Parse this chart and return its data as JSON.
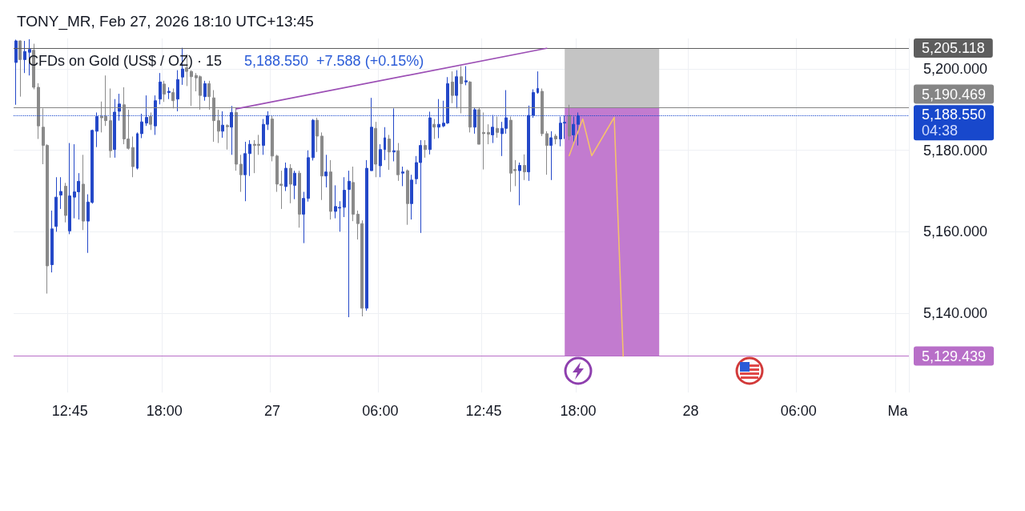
{
  "chart_data": {
    "type": "candlestick",
    "title": "CFDs on Gold (US$ / OZ) · 15",
    "subtitle": "5,188.550  +7.588 (+0.15%)",
    "annotations": [
      "TONY_MR, Feb 27, 2026 18:10 UTC+13:45",
      "04:38"
    ],
    "categories": [
      null,
      null,
      null,
      null,
      null,
      null,
      null,
      null,
      null,
      null,
      null,
      null,
      "12:45",
      null,
      null,
      null,
      null,
      null,
      null,
      null,
      null,
      null,
      null,
      null,
      null,
      null,
      null,
      null,
      null,
      null,
      null,
      null,
      null,
      "18:00",
      null,
      null,
      null,
      null,
      null,
      null,
      null,
      null,
      null,
      null,
      null,
      null,
      null,
      null,
      null,
      null,
      null,
      null,
      null,
      null,
      null,
      null,
      null,
      "27",
      null,
      null,
      null,
      null,
      null,
      null,
      null,
      null,
      null,
      null,
      null,
      null,
      null,
      null,
      null,
      null,
      null,
      null,
      null,
      null,
      null,
      null,
      null,
      "06:00",
      null,
      null,
      null,
      null,
      null,
      null,
      null,
      null,
      null,
      null,
      null,
      null,
      null,
      null,
      null,
      null,
      null,
      null,
      null,
      null,
      null,
      null,
      "12:45",
      null,
      null,
      null,
      null,
      null,
      null,
      null,
      null,
      null,
      null,
      null,
      null,
      null,
      null,
      null,
      null,
      null,
      null,
      null,
      null,
      "18:00",
      null,
      null,
      null,
      null,
      null,
      null,
      null,
      null,
      null,
      null,
      null,
      null,
      null,
      null,
      null,
      null,
      null,
      null,
      null,
      null,
      null,
      null,
      null,
      null,
      "28",
      null,
      null,
      null,
      null,
      null,
      null,
      null,
      null,
      null,
      null,
      null,
      null,
      null,
      null,
      null,
      null,
      null,
      null,
      null,
      null,
      null,
      null,
      null,
      "06:00",
      null,
      null,
      null,
      null,
      null,
      null,
      null,
      null,
      null,
      null,
      null,
      null,
      null,
      null,
      null,
      null,
      null,
      null,
      null,
      null,
      null,
      "Ma",
      null,
      null
    ],
    "ohlc": [
      [
        5201.6,
        5207.2,
        5191.2,
        5206.9
      ],
      [
        5206.9,
        5207,
        5193.2,
        5202.3
      ],
      [
        5202.3,
        5206.9,
        5199,
        5204.3
      ],
      [
        5204.1,
        5207.3,
        5198.4,
        5204.8
      ],
      [
        5204.6,
        5206.2,
        5195,
        5195.5
      ],
      [
        5195.5,
        5196.5,
        5182.8,
        5186
      ],
      [
        5185.7,
        5190.3,
        5176.6,
        5181.2
      ],
      [
        5181.2,
        5181.5,
        5144.8,
        5151.6
      ],
      [
        5151.9,
        5165.2,
        5150,
        5160.7
      ],
      [
        5161.3,
        5173.4,
        5160,
        5168.5
      ],
      [
        5169,
        5173.4,
        5165.6,
        5169.9
      ],
      [
        5171.2,
        5172,
        5162.3,
        5164
      ],
      [
        5160.2,
        5181.8,
        5159.4,
        5168.8
      ],
      [
        5168.5,
        5181.5,
        5163.3,
        5169.8
      ],
      [
        5169.8,
        5174.4,
        5163,
        5172.4
      ],
      [
        5171.7,
        5178.9,
        5160.4,
        5162.6
      ],
      [
        5162.6,
        5169.2,
        5154.8,
        5167.3
      ],
      [
        5167.2,
        5185.1,
        5166.9,
        5184.9
      ],
      [
        5184.7,
        5189.3,
        5180.8,
        5188.3
      ],
      [
        5188.3,
        5192,
        5184.4,
        5188
      ],
      [
        5188.3,
        5198.4,
        5186,
        5187.3
      ],
      [
        5187.3,
        5195.2,
        5178.2,
        5179.9
      ],
      [
        5180.2,
        5192.6,
        5178.2,
        5189.4
      ],
      [
        5189.6,
        5193.9,
        5187.3,
        5191.4
      ],
      [
        5191.2,
        5195.5,
        5181.5,
        5182.8
      ],
      [
        5182.8,
        5190,
        5180.2,
        5180.5
      ],
      [
        5180.7,
        5183.4,
        5173.4,
        5176
      ],
      [
        5175.6,
        5184.4,
        5175.3,
        5184.1
      ],
      [
        5184.1,
        5189,
        5183,
        5187
      ],
      [
        5186.7,
        5193.5,
        5186,
        5188.1
      ],
      [
        5188.3,
        5189.3,
        5185,
        5186.4
      ],
      [
        5186,
        5193.5,
        5183.8,
        5192.2
      ],
      [
        5192.6,
        5199,
        5191.3,
        5196.8
      ],
      [
        5196.3,
        5197.1,
        5191.9,
        5193.8
      ],
      [
        5194.2,
        5195.5,
        5192.6,
        5194.5
      ],
      [
        5194.2,
        5195.2,
        5190.3,
        5192.2
      ],
      [
        5192.6,
        5199.7,
        5189.6,
        5197.4
      ],
      [
        5198,
        5205.2,
        5196.1,
        5200
      ],
      [
        5200.3,
        5203.6,
        5195.8,
        5199.4
      ],
      [
        5199.4,
        5199.7,
        5190.9,
        5198.1
      ],
      [
        5198.4,
        5199,
        5194.5,
        5197.8
      ],
      [
        5198.1,
        5198.4,
        5190,
        5193.5
      ],
      [
        5193.2,
        5197.1,
        5192.2,
        5196.4
      ],
      [
        5196.4,
        5197.1,
        5190,
        5193.2
      ],
      [
        5192.9,
        5194.8,
        5182.1,
        5187.3
      ],
      [
        5187.3,
        5190,
        5181.8,
        5184.7
      ],
      [
        5184.7,
        5189.6,
        5183.1,
        5186.2
      ],
      [
        5186.1,
        5186.4,
        5180.2,
        5185.8
      ],
      [
        5185.7,
        5190.9,
        5178.9,
        5189.3
      ],
      [
        5189.3,
        5190.6,
        5175,
        5176.6
      ],
      [
        5176.6,
        5178.9,
        5169.8,
        5174
      ],
      [
        5174,
        5182.1,
        5167.5,
        5179.2
      ],
      [
        5179.2,
        5182.5,
        5173.7,
        5181.5
      ],
      [
        5181.5,
        5182.5,
        5174.4,
        5181.2
      ],
      [
        5181.5,
        5183.8,
        5178.9,
        5181.2
      ],
      [
        5181.2,
        5187.7,
        5178.9,
        5186.4
      ],
      [
        5186.4,
        5189.6,
        5185,
        5188.5
      ],
      [
        5187.7,
        5188.6,
        5177.3,
        5178.6
      ],
      [
        5178.6,
        5178.9,
        5169.8,
        5171.7
      ],
      [
        5171.7,
        5175,
        5165.6,
        5171.4
      ],
      [
        5171.1,
        5177,
        5170,
        5175.6
      ],
      [
        5175.6,
        5176.6,
        5167,
        5171.7
      ],
      [
        5171.4,
        5175,
        5168,
        5174.4
      ],
      [
        5174.4,
        5175,
        5161,
        5164.3
      ],
      [
        5164.3,
        5169.8,
        5157.2,
        5168.2
      ],
      [
        5168.2,
        5180,
        5167.4,
        5178.2
      ],
      [
        5178.2,
        5187.7,
        5177.5,
        5187.4
      ],
      [
        5187.4,
        5188,
        5179.6,
        5183.5
      ],
      [
        5183.5,
        5184.4,
        5167.8,
        5173.7
      ],
      [
        5173.7,
        5178.9,
        5170.9,
        5174.7
      ],
      [
        5174.7,
        5177.6,
        5163,
        5165
      ],
      [
        5165,
        5171.4,
        5163.3,
        5166.2
      ],
      [
        5165.8,
        5167.5,
        5160,
        5166
      ],
      [
        5166,
        5173.4,
        5163.6,
        5170.2
      ],
      [
        5170.4,
        5175,
        5139,
        5172.4
      ],
      [
        5172.1,
        5176,
        5162.6,
        5164.3
      ],
      [
        5164.3,
        5165.2,
        5158.1,
        5162
      ],
      [
        5162,
        5162.8,
        5139.2,
        5141.2
      ],
      [
        5141.2,
        5177.6,
        5140.6,
        5175.6
      ],
      [
        5175,
        5192.9,
        5175,
        5185.7
      ],
      [
        5185.4,
        5187,
        5173.4,
        5176.6
      ],
      [
        5176.2,
        5181.5,
        5173.4,
        5180.2
      ],
      [
        5180.2,
        5185.7,
        5177.6,
        5183.1
      ],
      [
        5182.8,
        5183.8,
        5175.2,
        5179.6
      ],
      [
        5179.6,
        5190.3,
        5177.3,
        5179.9
      ],
      [
        5179.9,
        5181.8,
        5172.5,
        5174
      ],
      [
        5174.4,
        5176,
        5171.2,
        5174.7
      ],
      [
        5175,
        5175.3,
        5161.7,
        5166.9
      ],
      [
        5166.9,
        5174,
        5163,
        5172.7
      ],
      [
        5173,
        5178.6,
        5171.7,
        5177
      ],
      [
        5177,
        5182.5,
        5159.7,
        5181.2
      ],
      [
        5181.2,
        5182.5,
        5178.2,
        5180.2
      ],
      [
        5180.2,
        5189.5,
        5179,
        5188
      ],
      [
        5186.4,
        5187.7,
        5182.8,
        5185.7
      ],
      [
        5185.7,
        5192.6,
        5183,
        5186.4
      ],
      [
        5186,
        5192.2,
        5185.7,
        5186.7
      ],
      [
        5186.7,
        5198,
        5186.5,
        5196.4
      ],
      [
        5196.8,
        5199.4,
        5191.6,
        5193.5
      ],
      [
        5193.5,
        5199.7,
        5190.3,
        5198.1
      ],
      [
        5198.1,
        5200.7,
        5189.1,
        5196.4
      ],
      [
        5196.8,
        5200.7,
        5196,
        5197.1
      ],
      [
        5196.8,
        5197,
        5184.4,
        5185.7
      ],
      [
        5185.7,
        5190.6,
        5184.1,
        5190
      ],
      [
        5190,
        5190.6,
        5181.5,
        5181.5
      ],
      [
        5184.4,
        5189.3,
        5175.3,
        5184.1
      ],
      [
        5184.4,
        5186.4,
        5181.5,
        5184
      ],
      [
        5183.8,
        5188.7,
        5181.8,
        5185.7
      ],
      [
        5185.4,
        5188.3,
        5183.1,
        5184.4
      ],
      [
        5184.1,
        5187,
        5178.6,
        5185.4
      ],
      [
        5185.4,
        5194.8,
        5184.1,
        5188
      ],
      [
        5187.4,
        5188.3,
        5169.8,
        5174.4
      ],
      [
        5175.3,
        5177.6,
        5171.2,
        5175
      ],
      [
        5175,
        5177,
        5166.5,
        5176.3
      ],
      [
        5176.3,
        5179,
        5172.7,
        5174.7
      ],
      [
        5174.7,
        5191,
        5172.5,
        5188.6
      ],
      [
        5188.6,
        5195,
        5188,
        5194.2
      ],
      [
        5194.2,
        5199.4,
        5193.9,
        5195.2
      ],
      [
        5194.5,
        5195.2,
        5183.5,
        5184.1
      ],
      [
        5184.1,
        5184.7,
        5174,
        5181.2
      ],
      [
        5181.2,
        5184.7,
        5172.7,
        5183.1
      ],
      [
        5183.5,
        5184,
        5181.5,
        5182.8
      ],
      [
        5182.8,
        5188.3,
        5181,
        5186.7
      ],
      [
        5186.7,
        5188.6,
        5182.8,
        5186.9
      ],
      [
        5188.6,
        5191.2,
        5182.5,
        5183.5
      ],
      [
        5183.8,
        5188.3,
        5181.8,
        5186.4
      ],
      [
        5186.4,
        5189.3,
        5181.2,
        5188.55
      ],
      null,
      null,
      null,
      null,
      null,
      null,
      null,
      null,
      null,
      null,
      null,
      null,
      null,
      null,
      null,
      null,
      null,
      null,
      null,
      null,
      null,
      null,
      null,
      null,
      null,
      null,
      null,
      null,
      null,
      null,
      null,
      null,
      null,
      null,
      null,
      null,
      null,
      null,
      null,
      null,
      null,
      null,
      null,
      null,
      null,
      null,
      null,
      null,
      null,
      null,
      null,
      null,
      null,
      null,
      null,
      null,
      null,
      null,
      null,
      null,
      null,
      null,
      null,
      null,
      null,
      null,
      null,
      null,
      null,
      null,
      null,
      null,
      null
    ],
    "colors": [
      "#2448c8",
      "#8a8a8a",
      "#2448c8",
      "#2448c8",
      "#8a8a8a",
      "#8a8a8a",
      "#8a8a8a",
      "#8a8a8a",
      "#2448c8",
      "#2448c8",
      "#2448c8",
      "#8a8a8a",
      "#2448c8",
      "#2448c8",
      "#2448c8",
      "#8a8a8a",
      "#2448c8",
      "#2448c8",
      "#2448c8",
      "#8a8a8a",
      "#8a8a8a",
      "#8a8a8a",
      "#2448c8",
      "#2448c8",
      "#8a8a8a",
      "#8a8a8a",
      "#8a8a8a",
      "#2448c8",
      "#2448c8",
      "#2448c8",
      "#8a8a8a",
      "#2448c8",
      "#2448c8",
      "#8a8a8a",
      "#2448c8",
      "#8a8a8a",
      "#2448c8",
      "#2448c8",
      "#8a8a8a",
      "#8a8a8a",
      "#8a8a8a",
      "#8a8a8a",
      "#2448c8",
      "#8a8a8a",
      "#8a8a8a",
      "#8a8a8a",
      "#2448c8",
      "#8a8a8a",
      "#2448c8",
      "#8a8a8a",
      "#8a8a8a",
      "#2448c8",
      "#2448c8",
      "#8a8a8a",
      "#8a8a8a",
      "#2448c8",
      "#2448c8",
      "#8a8a8a",
      "#8a8a8a",
      "#8a8a8a",
      "#2448c8",
      "#8a8a8a",
      "#2448c8",
      "#8a8a8a",
      "#2448c8",
      "#2448c8",
      "#2448c8",
      "#8a8a8a",
      "#8a8a8a",
      "#2448c8",
      "#8a8a8a",
      "#2448c8",
      "#2448c8",
      "#2448c8",
      "#2448c8",
      "#8a8a8a",
      "#8a8a8a",
      "#8a8a8a",
      "#2448c8",
      "#2448c8",
      "#8a8a8a",
      "#2448c8",
      "#2448c8",
      "#8a8a8a",
      "#2448c8",
      "#8a8a8a",
      "#2448c8",
      "#8a8a8a",
      "#2448c8",
      "#2448c8",
      "#2448c8",
      "#8a8a8a",
      "#2448c8",
      "#8a8a8a",
      "#2448c8",
      "#2448c8",
      "#2448c8",
      "#8a8a8a",
      "#2448c8",
      "#8a8a8a",
      "#2448c8",
      "#8a8a8a",
      "#2448c8",
      "#8a8a8a",
      "#8a8a8a",
      "#8a8a8a",
      "#2448c8",
      "#8a8a8a",
      "#2448c8",
      "#2448c8",
      "#8a8a8a",
      "#8a8a8a",
      "#2448c8",
      "#8a8a8a",
      "#2448c8",
      "#2448c8",
      "#2448c8",
      "#8a8a8a",
      "#8a8a8a",
      "#2448c8",
      "#8a8a8a",
      "#2448c8",
      "#2448c8",
      "#8a8a8a",
      "#2448c8",
      "#2448c8",
      null,
      null,
      null,
      null,
      null,
      null,
      null,
      null,
      null,
      null,
      null,
      null,
      null,
      null,
      null,
      null,
      null,
      null,
      null,
      null,
      null,
      null,
      null,
      null,
      null,
      null,
      null,
      null,
      null,
      null,
      null,
      null,
      null,
      null,
      null,
      null,
      null,
      null,
      null,
      null,
      null,
      null,
      null,
      null,
      null,
      null,
      null,
      null,
      null,
      null,
      null,
      null,
      null,
      null,
      null,
      null,
      null,
      null,
      null,
      null,
      null,
      null,
      null,
      null,
      null,
      null,
      null,
      null,
      null,
      null,
      null,
      null,
      null
    ],
    "series": [
      {
        "type": "line",
        "color": "#9c4fb5",
        "values": [
          null,
          null,
          null,
          null,
          null,
          null,
          null,
          null,
          null,
          null,
          null,
          null,
          null,
          null,
          null,
          null,
          null,
          null,
          null,
          null,
          null,
          null,
          null,
          null,
          null,
          null,
          null,
          null,
          null,
          null,
          null,
          null,
          null,
          null,
          null,
          null,
          null,
          null,
          null,
          null,
          null,
          null,
          null,
          null,
          null,
          null,
          null,
          null,
          null,
          5190.2,
          null,
          null,
          null,
          null,
          null,
          null,
          null,
          null,
          null,
          null,
          null,
          null,
          null,
          null,
          null,
          null,
          null,
          null,
          null,
          null,
          null,
          null,
          null,
          null,
          null,
          null,
          null,
          null,
          null,
          null,
          null,
          null,
          null,
          null,
          null,
          null,
          null,
          null,
          null,
          null,
          null,
          null,
          null,
          null,
          null,
          null,
          null,
          null,
          null,
          null,
          null,
          null,
          null,
          null,
          null,
          null,
          null,
          null,
          null,
          null,
          null,
          null,
          null,
          null,
          null,
          null,
          null,
          null,
          5205.1,
          null,
          null,
          null,
          null,
          null,
          null,
          null,
          null,
          null,
          null,
          null,
          null,
          null,
          null,
          null,
          null,
          null,
          null,
          null,
          null,
          null,
          null,
          null,
          null,
          null,
          null,
          null,
          null,
          null,
          null,
          null,
          null,
          null,
          null,
          null,
          null,
          null,
          null,
          null,
          null,
          null,
          null,
          null,
          null,
          null,
          null,
          null,
          null,
          null,
          null,
          null,
          null,
          null,
          null,
          null,
          null,
          null,
          null,
          null,
          null,
          null,
          null,
          null,
          null,
          null,
          null,
          null,
          null,
          null,
          null,
          null,
          null,
          null,
          null,
          null,
          null,
          null,
          null,
          null,
          null
        ]
      },
      {
        "type": "line",
        "color": "#f5c26b",
        "values": [
          null,
          null,
          null,
          null,
          null,
          null,
          null,
          null,
          null,
          null,
          null,
          null,
          null,
          null,
          null,
          null,
          null,
          null,
          null,
          null,
          null,
          null,
          null,
          null,
          null,
          null,
          null,
          null,
          null,
          null,
          null,
          null,
          null,
          null,
          null,
          null,
          null,
          null,
          null,
          null,
          null,
          null,
          null,
          null,
          null,
          null,
          null,
          null,
          null,
          null,
          null,
          null,
          null,
          null,
          null,
          null,
          null,
          null,
          null,
          null,
          null,
          null,
          null,
          null,
          null,
          null,
          null,
          null,
          null,
          null,
          null,
          null,
          null,
          null,
          null,
          null,
          null,
          null,
          null,
          null,
          null,
          null,
          null,
          null,
          null,
          null,
          null,
          null,
          null,
          null,
          null,
          null,
          null,
          null,
          null,
          null,
          null,
          null,
          null,
          null,
          null,
          null,
          null,
          null,
          null,
          null,
          null,
          null,
          null,
          null,
          null,
          null,
          null,
          null,
          null,
          null,
          null,
          null,
          null,
          null,
          null,
          null,
          null,
          5178.7,
          null,
          null,
          5187.7,
          null,
          5178.7,
          null,
          null,
          null,
          null,
          5188.1,
          null,
          5129.4,
          null,
          null,
          null,
          null,
          null,
          null,
          null,
          null,
          null,
          null,
          null,
          null,
          null,
          null,
          null,
          null,
          null,
          null,
          null,
          null,
          null,
          null,
          null,
          null,
          null,
          null,
          null,
          null,
          null,
          null,
          null,
          null,
          null,
          null,
          null,
          null,
          null,
          null,
          null,
          null,
          null,
          null,
          null,
          null,
          null,
          null,
          null,
          null,
          null,
          null,
          null,
          null,
          null,
          null,
          null,
          null,
          null,
          null,
          null,
          null,
          null,
          null,
          null
        ]
      }
    ],
    "ylim": [
      5120.5,
      5207.5
    ],
    "yticks": [
      {
        "value": 5140,
        "label": "5,140.000"
      },
      {
        "value": 5160,
        "label": "5,160.000"
      },
      {
        "value": 5180,
        "label": "5,180.000"
      },
      {
        "value": 5200,
        "label": "5,200.000"
      }
    ],
    "ref_lines": [
      {
        "axis": "y",
        "value": 5205.118,
        "label": "5,205.118",
        "color": "#5d5d5d"
      },
      {
        "axis": "y",
        "value": 5190.469,
        "label": "5,190.469",
        "color": "#858585"
      },
      {
        "axis": "y",
        "value": 5188.55,
        "label": "5,188.550",
        "color": "#1848cc",
        "line_style": "dotted"
      },
      {
        "axis": "y",
        "value": 5129.439,
        "label": "5,129.439",
        "color": "#b86fc8"
      }
    ],
    "bands": [
      {
        "axis": "y",
        "from": 5190.469,
        "to": 5205.118,
        "color": "#c4c4c4"
      },
      {
        "axis": "y",
        "from": 5129.439,
        "to": 5190.469,
        "color": "#c27bcf"
      }
    ],
    "grid": true
  }
}
